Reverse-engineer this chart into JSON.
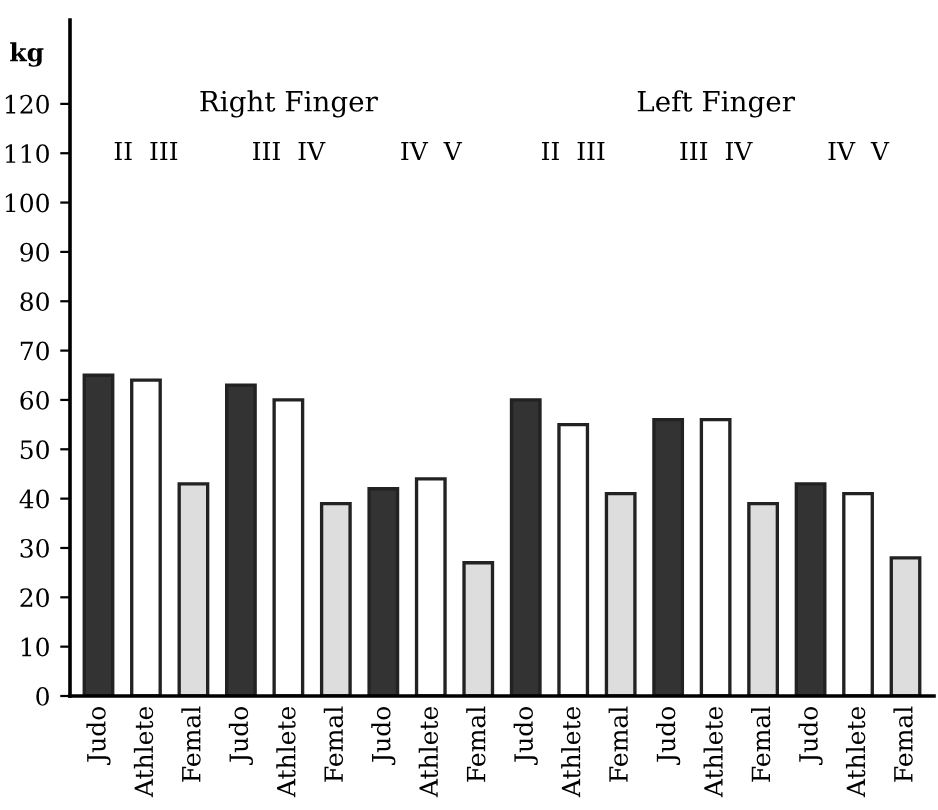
{
  "chart_data": {
    "type": "bar",
    "ylabel": "kg",
    "categories": [
      "Judo",
      "Athlete",
      "Femal",
      "Judo",
      "Athlete",
      "Femal",
      "Judo",
      "Athlete",
      "Femal",
      "Judo",
      "Athlete",
      "Femal",
      "Judo",
      "Athlete",
      "Femal",
      "Judo",
      "Athlete",
      "Femal"
    ],
    "values": [
      65,
      64,
      43,
      63,
      60,
      39,
      42,
      44,
      27,
      60,
      55,
      41,
      56,
      56,
      39,
      43,
      41,
      28
    ],
    "colors": [
      "#333333",
      "#ffffff",
      "#dddddd",
      "#333333",
      "#ffffff",
      "#dddddd",
      "#333333",
      "#ffffff",
      "#dddddd",
      "#333333",
      "#ffffff",
      "#dddddd",
      "#333333",
      "#ffffff",
      "#dddddd",
      "#333333",
      "#ffffff",
      "#dddddd"
    ],
    "ylim": [
      0,
      137
    ],
    "yticks": [
      0,
      10,
      20,
      30,
      40,
      50,
      60,
      70,
      80,
      90,
      100,
      110,
      120
    ],
    "annotations": [
      "Right Finger",
      "Left Finger",
      "II  III",
      "III  IV",
      "IV  V",
      "II  III",
      "III  IV",
      "IV  V"
    ],
    "grid": false,
    "legend": false
  }
}
